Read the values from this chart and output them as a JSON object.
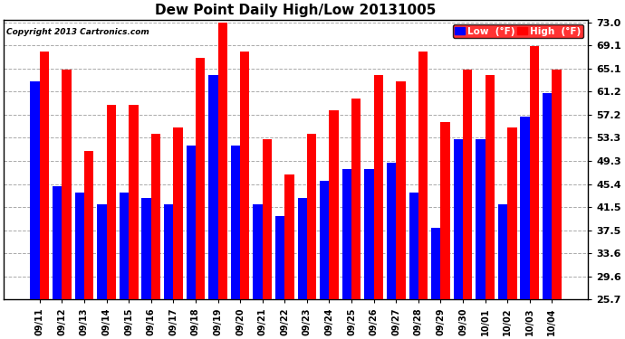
{
  "title": "Dew Point Daily High/Low 20131005",
  "copyright": "Copyright 2013 Cartronics.com",
  "dates": [
    "09/11",
    "09/12",
    "09/13",
    "09/14",
    "09/15",
    "09/16",
    "09/17",
    "09/18",
    "09/19",
    "09/20",
    "09/21",
    "09/22",
    "09/23",
    "09/24",
    "09/25",
    "09/26",
    "09/27",
    "09/28",
    "09/29",
    "09/30",
    "10/01",
    "10/02",
    "10/03",
    "10/04"
  ],
  "low_values": [
    63,
    45,
    44,
    42,
    44,
    43,
    42,
    52,
    64,
    52,
    42,
    40,
    43,
    46,
    48,
    48,
    49,
    44,
    38,
    53,
    53,
    42,
    57,
    61
  ],
  "high_values": [
    68,
    65,
    51,
    59,
    59,
    54,
    55,
    67,
    73,
    68,
    53,
    47,
    54,
    58,
    60,
    64,
    63,
    68,
    56,
    65,
    64,
    55,
    69,
    65
  ],
  "low_color": "#0000ff",
  "high_color": "#ff0000",
  "bg_color": "#ffffff",
  "grid_color": "#aaaaaa",
  "yticks": [
    25.7,
    29.6,
    33.6,
    37.5,
    41.5,
    45.4,
    49.3,
    53.3,
    57.2,
    61.2,
    65.1,
    69.1,
    73.0
  ],
  "ymin": 25.7,
  "ymax": 73.0,
  "bar_width": 0.42,
  "legend_low": "Low  (°F)",
  "legend_high": "High  (°F)"
}
